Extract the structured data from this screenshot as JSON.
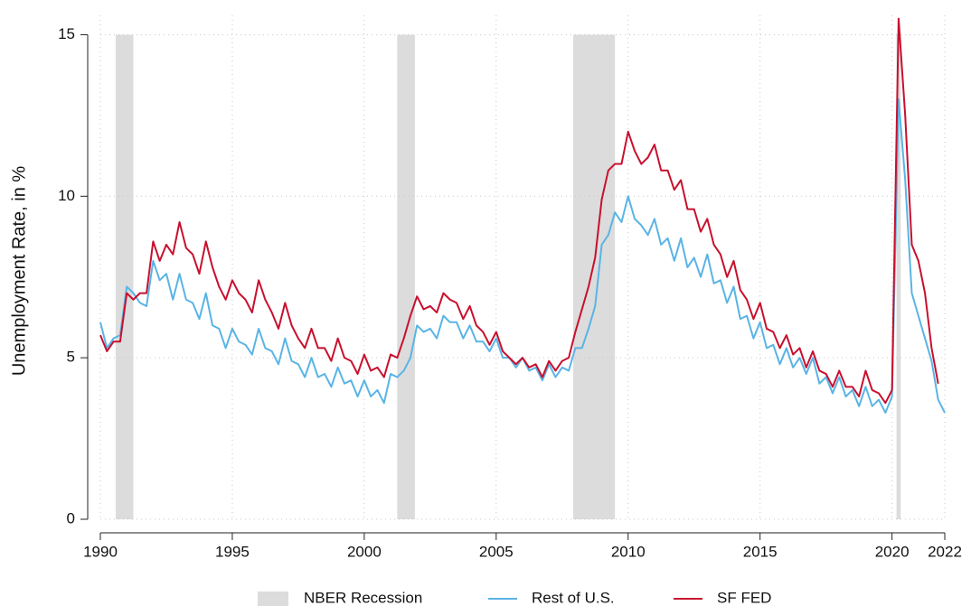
{
  "chart_data": {
    "type": "line",
    "y_label": "Unemployment Rate, in %",
    "x": [
      1990,
      1990.25,
      1990.5,
      1990.75,
      1991,
      1991.25,
      1991.5,
      1991.75,
      1992,
      1992.25,
      1992.5,
      1992.75,
      1993,
      1993.25,
      1993.5,
      1993.75,
      1994,
      1994.25,
      1994.5,
      1994.75,
      1995,
      1995.25,
      1995.5,
      1995.75,
      1996,
      1996.25,
      1996.5,
      1996.75,
      1997,
      1997.25,
      1997.5,
      1997.75,
      1998,
      1998.25,
      1998.5,
      1998.75,
      1999,
      1999.25,
      1999.5,
      1999.75,
      2000,
      2000.25,
      2000.5,
      2000.75,
      2001,
      2001.25,
      2001.5,
      2001.75,
      2002,
      2002.25,
      2002.5,
      2002.75,
      2003,
      2003.25,
      2003.5,
      2003.75,
      2004,
      2004.25,
      2004.5,
      2004.75,
      2005,
      2005.25,
      2005.5,
      2005.75,
      2006,
      2006.25,
      2006.5,
      2006.75,
      2007,
      2007.25,
      2007.5,
      2007.75,
      2008,
      2008.25,
      2008.5,
      2008.75,
      2009,
      2009.25,
      2009.5,
      2009.75,
      2010,
      2010.25,
      2010.5,
      2010.75,
      2011,
      2011.25,
      2011.5,
      2011.75,
      2012,
      2012.25,
      2012.5,
      2012.75,
      2013,
      2013.25,
      2013.5,
      2013.75,
      2014,
      2014.25,
      2014.5,
      2014.75,
      2015,
      2015.25,
      2015.5,
      2015.75,
      2016,
      2016.25,
      2016.5,
      2016.75,
      2017,
      2017.25,
      2017.5,
      2017.75,
      2018,
      2018.25,
      2018.5,
      2018.75,
      2019,
      2019.25,
      2019.5,
      2019.75,
      2020,
      2020.25,
      2020.5,
      2020.75,
      2021,
      2021.25,
      2021.5,
      2021.75,
      2022
    ],
    "series": [
      {
        "name": "Rest of U.S.",
        "color": "#5ab4e5",
        "values": [
          6.1,
          5.3,
          5.6,
          5.7,
          7.2,
          7.0,
          6.7,
          6.6,
          8.0,
          7.4,
          7.6,
          6.8,
          7.6,
          6.8,
          6.7,
          6.2,
          7.0,
          6.0,
          5.9,
          5.3,
          5.9,
          5.5,
          5.4,
          5.1,
          5.9,
          5.3,
          5.2,
          4.8,
          5.6,
          4.9,
          4.8,
          4.4,
          5.0,
          4.4,
          4.5,
          4.1,
          4.7,
          4.2,
          4.3,
          3.8,
          4.3,
          3.8,
          4.0,
          3.6,
          4.5,
          4.4,
          4.6,
          5.0,
          6.0,
          5.8,
          5.9,
          5.6,
          6.3,
          6.1,
          6.1,
          5.6,
          6.0,
          5.5,
          5.5,
          5.2,
          5.6,
          5.0,
          5.0,
          4.7,
          5.0,
          4.6,
          4.7,
          4.3,
          4.8,
          4.4,
          4.7,
          4.6,
          5.3,
          5.3,
          5.9,
          6.6,
          8.5,
          8.8,
          9.5,
          9.2,
          10.0,
          9.3,
          9.1,
          8.8,
          9.3,
          8.5,
          8.7,
          8.0,
          8.7,
          7.8,
          8.1,
          7.5,
          8.2,
          7.3,
          7.4,
          6.7,
          7.2,
          6.2,
          6.3,
          5.6,
          6.1,
          5.3,
          5.4,
          4.8,
          5.3,
          4.7,
          5.0,
          4.5,
          5.0,
          4.2,
          4.4,
          3.9,
          4.4,
          3.8,
          4.0,
          3.5,
          4.1,
          3.5,
          3.7,
          3.3,
          3.8,
          13.0,
          10.5,
          7.0,
          6.3,
          5.6,
          4.9,
          3.7,
          3.3
        ]
      },
      {
        "name": "SF FED",
        "color": "#c8102e",
        "values": [
          5.7,
          5.2,
          5.5,
          5.5,
          7.0,
          6.8,
          7.0,
          7.0,
          8.6,
          8.0,
          8.5,
          8.2,
          9.2,
          8.4,
          8.2,
          7.6,
          8.6,
          7.8,
          7.2,
          6.8,
          7.4,
          7.0,
          6.8,
          6.4,
          7.4,
          6.8,
          6.4,
          5.9,
          6.7,
          6.0,
          5.6,
          5.3,
          5.9,
          5.3,
          5.3,
          4.9,
          5.6,
          5.0,
          4.9,
          4.5,
          5.1,
          4.6,
          4.7,
          4.4,
          5.1,
          5.0,
          5.6,
          6.3,
          6.9,
          6.5,
          6.6,
          6.4,
          7.0,
          6.8,
          6.7,
          6.2,
          6.6,
          6.0,
          5.8,
          5.4,
          5.8,
          5.2,
          5.0,
          4.8,
          5.0,
          4.7,
          4.8,
          4.4,
          4.9,
          4.6,
          4.9,
          5.0,
          5.8,
          6.5,
          7.2,
          8.1,
          9.9,
          10.8,
          11.0,
          11.0,
          12.0,
          11.4,
          11.0,
          11.2,
          11.6,
          10.8,
          10.8,
          10.2,
          10.5,
          9.6,
          9.6,
          8.9,
          9.3,
          8.5,
          8.2,
          7.5,
          8.0,
          7.1,
          6.8,
          6.2,
          6.7,
          5.9,
          5.8,
          5.3,
          5.7,
          5.1,
          5.3,
          4.7,
          5.2,
          4.6,
          4.5,
          4.1,
          4.6,
          4.1,
          4.1,
          3.8,
          4.6,
          4.0,
          3.9,
          3.6,
          4.0,
          15.5,
          12.5,
          8.5,
          8.0,
          7.0,
          5.3,
          4.2,
          null
        ]
      }
    ],
    "recessions": {
      "name": "NBER Recession",
      "color": "#dcdcdc",
      "value": 15,
      "periods": [
        [
          1990.58,
          1991.25
        ],
        [
          2001.25,
          2001.92
        ],
        [
          2007.92,
          2009.5
        ],
        [
          2020.17,
          2020.33
        ]
      ]
    },
    "xlim": [
      1990,
      2022
    ],
    "xticks": [
      1990,
      1995,
      2000,
      2005,
      2010,
      2015,
      2020,
      2022
    ],
    "ylim": [
      0,
      15.6
    ],
    "yticks": [
      0,
      5,
      10,
      15
    ],
    "grid": true,
    "legend": "bottom"
  }
}
